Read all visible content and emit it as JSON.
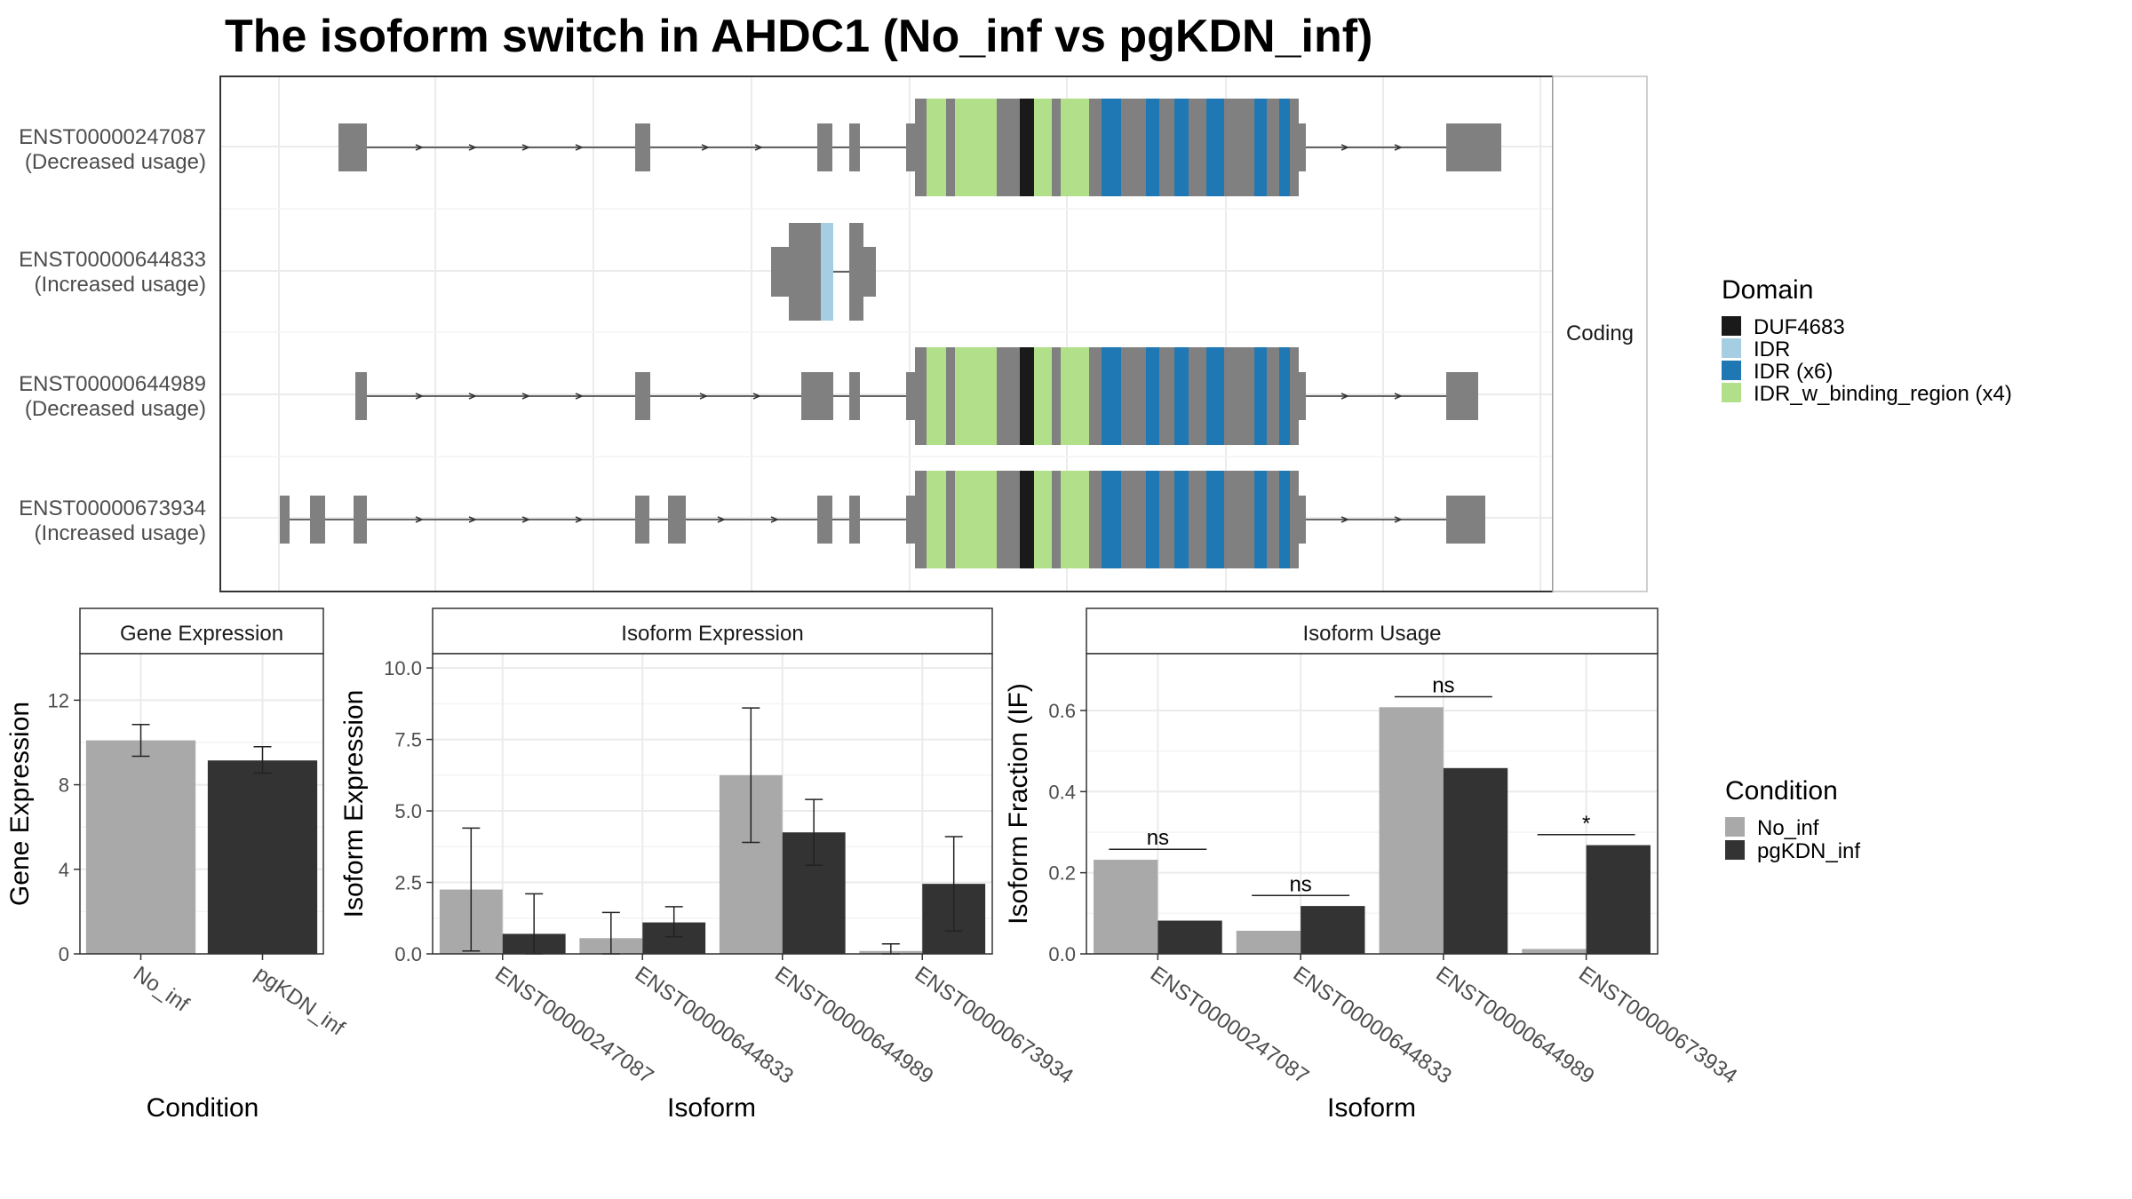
{
  "title": "The isoform switch in AHDC1 (No_inf vs pgKDN_inf)",
  "colors": {
    "exon": "#808080",
    "DUF4683": "#1a1a1a",
    "IDR": "#a6cee3",
    "IDR_x6": "#1f78b4",
    "IDR_binding": "#b2df8a",
    "No_inf": "#a9a9a9",
    "pgKDN_inf": "#333333"
  },
  "structure": {
    "strip_label": "Coding",
    "transcripts": [
      {
        "id": "ENST00000247087",
        "usage": "(Decreased usage)"
      },
      {
        "id": "ENST00000644833",
        "usage": "(Increased usage)"
      },
      {
        "id": "ENST00000644989",
        "usage": "(Decreased usage)"
      },
      {
        "id": "ENST00000673934",
        "usage": "(Increased usage)"
      }
    ],
    "domain_legend": {
      "title": "Domain",
      "entries": [
        "DUF4683",
        "IDR",
        "IDR (x6)",
        "IDR_w_binding_region (x4)"
      ]
    }
  },
  "condition_legend": {
    "title": "Condition",
    "entries": [
      "No_inf",
      "pgKDN_inf"
    ]
  },
  "chart_data": [
    {
      "type": "bar",
      "panel": "Gene Expression",
      "xlabel": "Condition",
      "ylabel": "Gene Expression",
      "categories": [
        "No_inf",
        "pgKDN_inf"
      ],
      "values": [
        10.1,
        9.15
      ],
      "error_low": [
        9.35,
        8.55
      ],
      "error_high": [
        10.85,
        9.8
      ],
      "yticks": [
        "0",
        "4",
        "8",
        "12"
      ],
      "ylim": [
        0,
        14.2
      ],
      "grid": true
    },
    {
      "type": "bar",
      "panel": "Isoform Expression",
      "xlabel": "Isoform",
      "ylabel": "Isoform Expression",
      "categories": [
        "ENST00000247087",
        "ENST00000644833",
        "ENST00000644989",
        "ENST00000673934"
      ],
      "series": [
        {
          "name": "No_inf",
          "values": [
            2.25,
            0.55,
            6.25,
            0.1
          ],
          "error_low": [
            0.1,
            0.0,
            3.9,
            0.0
          ],
          "error_high": [
            4.4,
            1.45,
            8.6,
            0.35
          ]
        },
        {
          "name": "pgKDN_inf",
          "values": [
            0.7,
            1.1,
            4.25,
            2.45
          ],
          "error_low": [
            0.0,
            0.6,
            3.1,
            0.8
          ],
          "error_high": [
            2.1,
            1.65,
            5.4,
            4.1
          ]
        }
      ],
      "yticks": [
        "0.0",
        "2.5",
        "5.0",
        "7.5",
        "10.0"
      ],
      "ylim": [
        0,
        10.5
      ],
      "grid": true
    },
    {
      "type": "bar",
      "panel": "Isoform Usage",
      "xlabel": "Isoform",
      "ylabel": "Isoform Fraction (IF)",
      "categories": [
        "ENST00000247087",
        "ENST00000644833",
        "ENST00000644989",
        "ENST00000673934"
      ],
      "series": [
        {
          "name": "No_inf",
          "values": [
            0.232,
            0.057,
            0.608,
            0.012
          ]
        },
        {
          "name": "pgKDN_inf",
          "values": [
            0.082,
            0.118,
            0.458,
            0.268
          ]
        }
      ],
      "significance": [
        "ns",
        "ns",
        "ns",
        "*"
      ],
      "yticks": [
        "0.0",
        "0.2",
        "0.4",
        "0.6"
      ],
      "ylim": [
        0,
        0.74
      ],
      "grid": true
    }
  ]
}
